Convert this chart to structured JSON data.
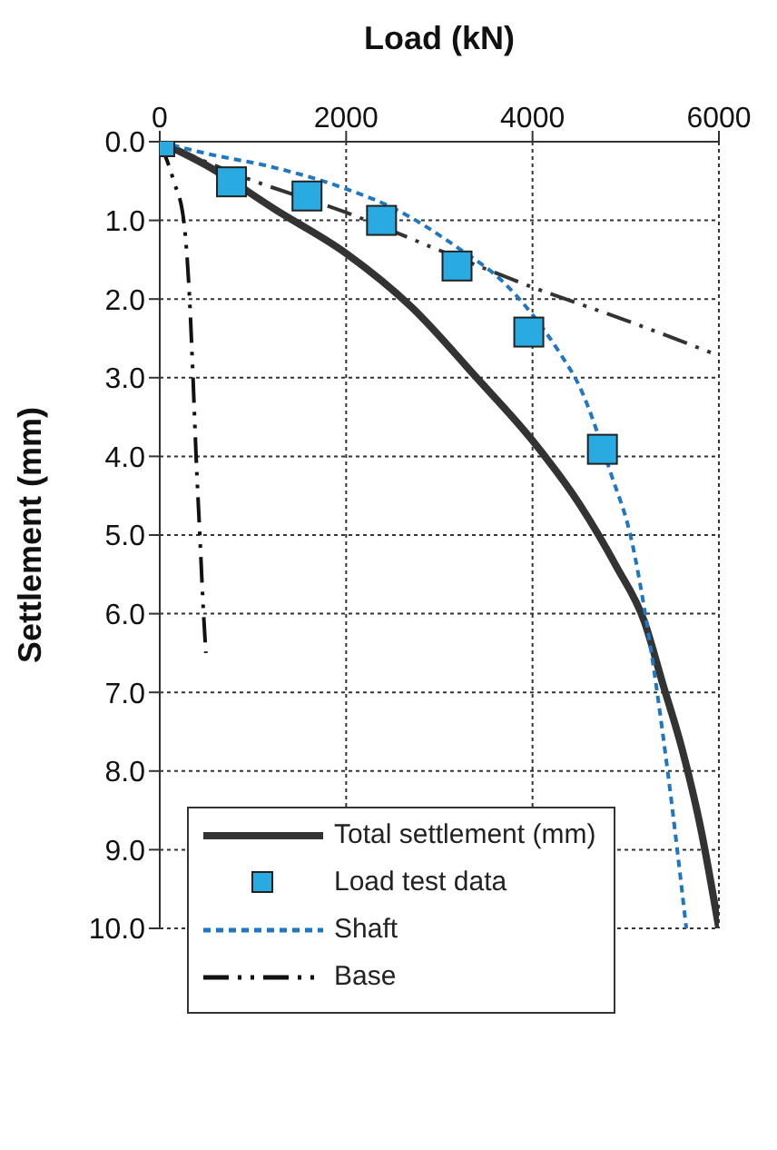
{
  "chart_data": {
    "type": "line",
    "xlabel": "Load (kN)",
    "ylabel": "Settlement (mm)",
    "xlim": [
      0,
      6000
    ],
    "xticks": [
      0,
      2000,
      4000,
      6000
    ],
    "ylim": [
      10,
      0
    ],
    "yticks": [
      {
        "value": 0,
        "label": "0.0"
      },
      {
        "value": 1,
        "label": "1.0"
      },
      {
        "value": 2,
        "label": "2.0"
      },
      {
        "value": 3,
        "label": "3.0"
      },
      {
        "value": 4,
        "label": "4.0"
      },
      {
        "value": 5,
        "label": "5.0"
      },
      {
        "value": 6,
        "label": "6.0"
      },
      {
        "value": 7,
        "label": "7.0"
      },
      {
        "value": 8,
        "label": "8.0"
      },
      {
        "value": 9,
        "label": "9.0"
      },
      {
        "value": 10,
        "label": "10.0"
      }
    ],
    "grid": true,
    "legend": "bottom left",
    "series": [
      {
        "name": "Total settlement (mm)",
        "color": "#333333",
        "line_style": "solid",
        "marker": "none",
        "x": [
          0,
          500,
          1250,
          2000,
          2700,
          3400,
          4000,
          4500,
          4900,
          5200,
          5400,
          5600,
          5800,
          6000
        ],
        "values": [
          0,
          0.3,
          0.87,
          1.42,
          2.1,
          3.0,
          3.8,
          4.6,
          5.4,
          6.1,
          6.9,
          7.7,
          8.7,
          10
        ]
      },
      {
        "name": "Load test data",
        "type": "scatter",
        "color": "#29abe2",
        "marker": "square",
        "x": [
          0,
          770,
          1580,
          2380,
          3190,
          3960,
          4750
        ],
        "values": [
          0,
          0.51,
          0.69,
          1.0,
          1.58,
          2.42,
          3.91
        ]
      },
      {
        "name": "Shaft",
        "color": "#1f77c4",
        "line_style": "dashed",
        "marker": "none",
        "x": [
          0,
          500,
          1200,
          2000,
          2500,
          3200,
          3700,
          4000,
          4300,
          4500,
          4850,
          5050,
          5250,
          5450,
          5650
        ],
        "values": [
          0,
          0.15,
          0.32,
          0.6,
          0.84,
          1.35,
          1.8,
          2.2,
          2.7,
          3.1,
          4.25,
          5.0,
          6.3,
          8.0,
          10
        ]
      },
      {
        "name": "Base",
        "color": "#111111",
        "line_style": "dashdot",
        "marker": "none",
        "x": [
          0,
          150,
          257,
          320,
          357,
          390,
          430,
          470,
          495
        ],
        "values": [
          0,
          0.5,
          1.0,
          2.0,
          3.0,
          4.0,
          5.0,
          6.0,
          6.5
        ]
      },
      {
        "color": "#333333",
        "line_style": "dashdot",
        "marker": "none",
        "x": [
          0,
          900,
          2000,
          3000,
          4000,
          5000,
          6000
        ],
        "values": [
          0,
          0.45,
          0.9,
          1.38,
          1.85,
          2.27,
          2.72
        ]
      }
    ]
  }
}
